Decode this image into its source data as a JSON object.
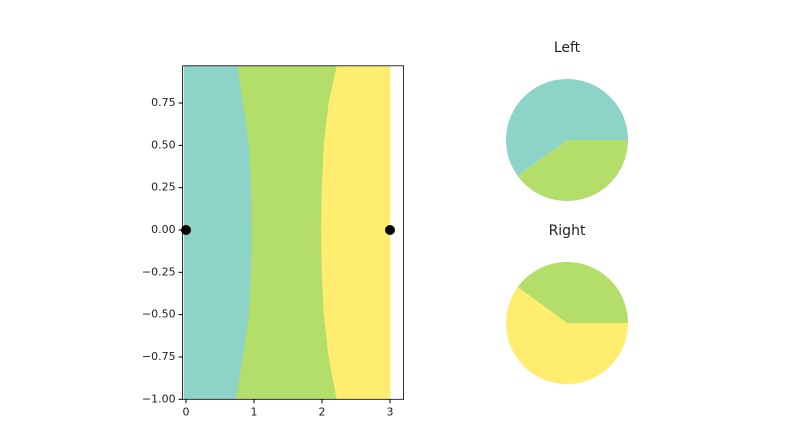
{
  "chart_data": [
    {
      "type": "contour",
      "xlim": [
        -0.05,
        3.2
      ],
      "ylim": [
        -1,
        0.97
      ],
      "xticks": [
        0,
        1,
        2,
        3
      ],
      "yticks": [
        {
          "value": -1,
          "label": "−1.00"
        },
        {
          "value": -0.75,
          "label": "−0.75"
        },
        {
          "value": -0.5,
          "label": "−0.50"
        },
        {
          "value": -0.25,
          "label": "−0.25"
        },
        {
          "value": 0,
          "label": "0.00"
        },
        0.25,
        {
          "value": 0.5,
          "label": "0.50"
        },
        0.75
      ],
      "x_extent": [
        -0.03,
        3.0
      ],
      "region_colors": [
        "#8dd3c7",
        "#b3de69",
        "#ffed6f"
      ],
      "boundaries": [
        {
          "y": [
            -1,
            -0.75,
            -0.5,
            -0.25,
            0,
            0.25,
            0.5,
            0.75,
            0.97
          ],
          "x": [
            0.74,
            0.84,
            0.93,
            0.96,
            0.97,
            0.96,
            0.93,
            0.84,
            0.76
          ]
        },
        {
          "y": [
            -1,
            -0.75,
            -0.5,
            -0.25,
            0,
            0.25,
            0.5,
            0.75,
            0.97
          ],
          "x": [
            2.22,
            2.1,
            2.03,
            2.0,
            1.99,
            2.0,
            2.03,
            2.1,
            2.22
          ]
        }
      ],
      "points": {
        "x": [
          0,
          3
        ],
        "y": [
          0,
          0
        ],
        "color": "#000000"
      }
    },
    {
      "type": "pie",
      "title": "Left",
      "values": [
        60,
        40
      ],
      "colors": [
        "#8dd3c7",
        "#b3de69"
      ]
    },
    {
      "type": "pie",
      "title": "Right",
      "values": [
        40,
        60
      ],
      "colors": [
        "#b3de69",
        "#ffed6f"
      ]
    }
  ]
}
